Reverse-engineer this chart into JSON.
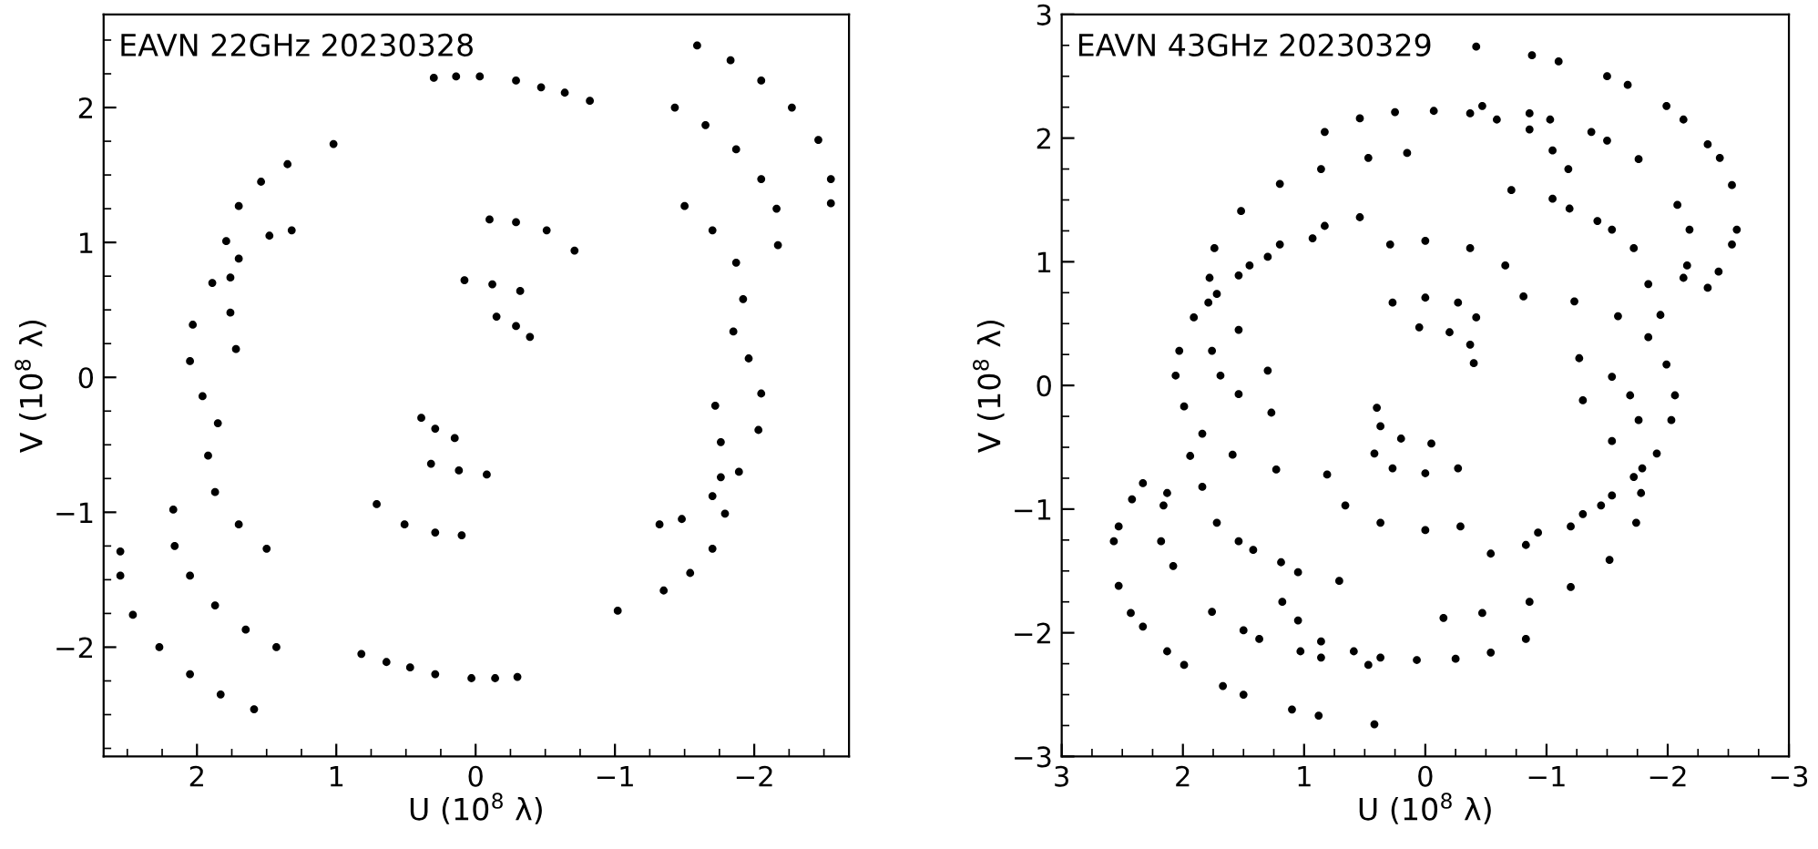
{
  "chart_data": [
    {
      "type": "scatter",
      "title": "EAVN 22GHz 20230328",
      "xlabel": "U (10$^{8}$ λ)",
      "ylabel": "V (10$^{8}$ λ)",
      "xlim": [
        2.67,
        -2.68
      ],
      "ylim": [
        -2.81,
        2.69
      ],
      "xticks": [
        2,
        1,
        0,
        -1,
        -2
      ],
      "yticks": [
        -2,
        -1,
        0,
        1,
        2
      ],
      "marker": "circle",
      "series": [
        {
          "color": "#000000",
          "x": [
            0.3,
            0.14,
            -0.03,
            -0.29,
            -0.47,
            -0.64,
            -0.82,
            -0.1,
            -0.29,
            -0.51,
            -0.71,
            0.08,
            -0.12,
            -0.32,
            -0.15,
            -0.29,
            -0.39,
            -1.59,
            -1.83,
            -2.05,
            -2.27,
            -2.46,
            -2.55,
            -2.55,
            -1.43,
            -1.65,
            -1.87,
            -2.05,
            -2.16,
            -2.17,
            -1.5,
            -1.7,
            -1.87,
            -1.92,
            -1.85,
            -1.96,
            -2.05,
            -2.03,
            -1.89,
            -1.7,
            -1.48,
            -1.32,
            -1.72,
            -1.76,
            -1.76,
            -1.79,
            -1.7,
            -1.54,
            -1.35,
            -1.02,
            -0.3,
            -0.14,
            0.03,
            0.29,
            0.47,
            0.64,
            0.82,
            0.1,
            0.29,
            0.51,
            0.71,
            -0.08,
            0.12,
            0.32,
            0.15,
            0.29,
            0.39,
            1.59,
            1.83,
            2.05,
            2.27,
            2.46,
            2.55,
            2.55,
            1.43,
            1.65,
            1.87,
            2.05,
            2.16,
            2.17,
            1.5,
            1.7,
            1.87,
            1.92,
            1.85,
            1.96,
            2.05,
            2.03,
            1.89,
            1.7,
            1.48,
            1.32,
            1.72,
            1.76,
            1.76,
            1.79,
            1.7,
            1.54,
            1.35,
            1.02
          ],
          "values": [
            2.22,
            2.23,
            2.23,
            2.2,
            2.15,
            2.11,
            2.05,
            1.17,
            1.15,
            1.09,
            0.94,
            0.72,
            0.69,
            0.64,
            0.45,
            0.38,
            0.3,
            2.46,
            2.35,
            2.2,
            2.0,
            1.76,
            1.47,
            1.29,
            2.0,
            1.87,
            1.69,
            1.47,
            1.25,
            0.98,
            1.27,
            1.09,
            0.85,
            0.58,
            0.34,
            0.14,
            -0.12,
            -0.39,
            -0.7,
            -0.88,
            -1.05,
            -1.09,
            -0.21,
            -0.48,
            -0.74,
            -1.01,
            -1.27,
            -1.45,
            -1.58,
            -1.73,
            -2.22,
            -2.23,
            -2.23,
            -2.2,
            -2.15,
            -2.11,
            -2.05,
            -1.17,
            -1.15,
            -1.09,
            -0.94,
            -0.72,
            -0.69,
            -0.64,
            -0.45,
            -0.38,
            -0.3,
            -2.46,
            -2.35,
            -2.2,
            -2.0,
            -1.76,
            -1.47,
            -1.29,
            -2.0,
            -1.87,
            -1.69,
            -1.47,
            -1.25,
            -0.98,
            -1.27,
            -1.09,
            -0.85,
            -0.58,
            -0.34,
            -0.14,
            0.12,
            0.39,
            0.7,
            0.88,
            1.05,
            1.09,
            0.21,
            0.48,
            0.74,
            1.01,
            1.27,
            1.45,
            1.58,
            1.73
          ]
        }
      ]
    },
    {
      "type": "scatter",
      "title": "EAVN 43GHz 20230329",
      "xlabel": "U (10$^{8}$ λ)",
      "ylabel": "V (10$^{8}$ λ)",
      "xlim": [
        3,
        -3
      ],
      "ylim": [
        -3,
        3
      ],
      "xticks": [
        3,
        2,
        1,
        0,
        -1,
        -2,
        -3
      ],
      "yticks": [
        -3,
        -2,
        -1,
        0,
        1,
        2,
        3
      ],
      "marker": "circle",
      "series": [
        {
          "color": "#000000",
          "x": [
            0.29,
            0,
            -0.37,
            -0.66,
            -0.81,
            0.27,
            0,
            -0.27,
            -0.42,
            0.05,
            -0.2,
            -0.37,
            -0.4,
            0.15,
            0.47,
            0.86,
            1.2,
            1.52,
            1.74,
            1.78,
            1.79,
            1.76,
            1.69,
            1.54,
            1.27,
            0.54,
            0.83,
            1.2,
            1.45,
            1.72,
            1.91,
            2.03,
            2.06,
            1.99,
            1.84,
            1.59,
            1.23,
            0.93,
            1.3,
            1.54,
            1.54,
            0.83,
            0.54,
            0.25,
            -0.07,
            -0.37,
            -0.59,
            -0.86,
            -1.05,
            -1.18,
            -1.54,
            -1.72,
            -1.84,
            -1.94,
            -0.47,
            -0.86,
            -1.03,
            -1.37,
            -1.5,
            -1.76,
            -2.08,
            -2.18,
            -2.16,
            -2.13,
            -0.88,
            -1.1,
            -1.5,
            -1.67,
            -1.99,
            -2.13,
            -2.33,
            -2.43,
            -2.53,
            -2.57,
            -2.53,
            -2.42,
            -2.33,
            -0.42,
            -0.71,
            -1.05,
            -1.19,
            -1.42,
            1.3,
            -0.29,
            0,
            0.37,
            0.66,
            0.81,
            -0.27,
            0,
            0.27,
            0.42,
            -0.05,
            0.2,
            0.37,
            0.4,
            -0.15,
            -0.47,
            -0.86,
            -1.2,
            -1.52,
            -1.74,
            -1.78,
            -1.79,
            -1.76,
            -1.69,
            -1.54,
            -1.27,
            -0.54,
            -0.83,
            -1.2,
            -1.45,
            -1.72,
            -1.91,
            -2.03,
            -2.06,
            -1.99,
            -1.84,
            -1.59,
            -1.23,
            -0.93,
            -1.3,
            -1.54,
            -1.54,
            -0.83,
            -0.54,
            -0.25,
            0.07,
            0.37,
            0.59,
            0.86,
            1.05,
            1.18,
            1.54,
            1.72,
            1.84,
            1.94,
            0.47,
            0.86,
            1.03,
            1.37,
            1.5,
            1.76,
            2.08,
            2.18,
            2.16,
            2.13,
            0.88,
            1.1,
            1.5,
            1.67,
            1.99,
            2.13,
            2.33,
            2.43,
            2.53,
            2.57,
            2.53,
            2.42,
            2.33,
            0.42,
            0.71,
            1.05,
            1.19,
            1.42,
            -1.3
          ],
          "values": [
            1.14,
            1.17,
            1.11,
            0.97,
            0.72,
            0.67,
            0.71,
            0.67,
            0.55,
            0.47,
            0.43,
            0.33,
            0.18,
            1.88,
            1.84,
            1.75,
            1.63,
            1.41,
            1.11,
            0.87,
            0.67,
            0.28,
            0.08,
            -0.07,
            -0.22,
            1.36,
            1.29,
            1.14,
            0.97,
            0.74,
            0.55,
            0.28,
            0.08,
            -0.17,
            -0.39,
            -0.56,
            -0.68,
            1.19,
            1.04,
            0.89,
            0.45,
            2.05,
            2.16,
            2.21,
            2.22,
            2.2,
            2.15,
            2.07,
            1.9,
            1.75,
            1.26,
            1.11,
            0.82,
            0.57,
            2.26,
            2.2,
            2.15,
            2.05,
            1.98,
            1.83,
            1.46,
            1.26,
            0.97,
            0.87,
            2.67,
            2.62,
            2.5,
            2.43,
            2.26,
            2.15,
            1.95,
            1.84,
            1.62,
            1.26,
            1.14,
            0.92,
            0.79,
            2.74,
            1.58,
            1.51,
            1.43,
            1.33,
            0.12,
            -1.14,
            -1.17,
            -1.11,
            -0.97,
            -0.72,
            -0.67,
            -0.71,
            -0.67,
            -0.55,
            -0.47,
            -0.43,
            -0.33,
            -0.18,
            -1.88,
            -1.84,
            -1.75,
            -1.63,
            -1.41,
            -1.11,
            -0.87,
            -0.67,
            -0.28,
            -0.08,
            0.07,
            0.22,
            -1.36,
            -1.29,
            -1.14,
            -0.97,
            -0.74,
            -0.55,
            -0.28,
            -0.08,
            0.17,
            0.39,
            0.56,
            0.68,
            -1.19,
            -1.04,
            -0.89,
            -0.45,
            -2.05,
            -2.16,
            -2.21,
            -2.22,
            -2.2,
            -2.15,
            -2.07,
            -1.9,
            -1.75,
            -1.26,
            -1.11,
            -0.82,
            -0.57,
            -2.26,
            -2.2,
            -2.15,
            -2.05,
            -1.98,
            -1.83,
            -1.46,
            -1.26,
            -0.97,
            -0.87,
            -2.67,
            -2.62,
            -2.5,
            -2.43,
            -2.26,
            -2.15,
            -1.95,
            -1.84,
            -1.62,
            -1.26,
            -1.14,
            -0.92,
            -0.79,
            -2.74,
            -1.58,
            -1.51,
            -1.43,
            -1.33,
            -0.12
          ]
        }
      ]
    }
  ]
}
